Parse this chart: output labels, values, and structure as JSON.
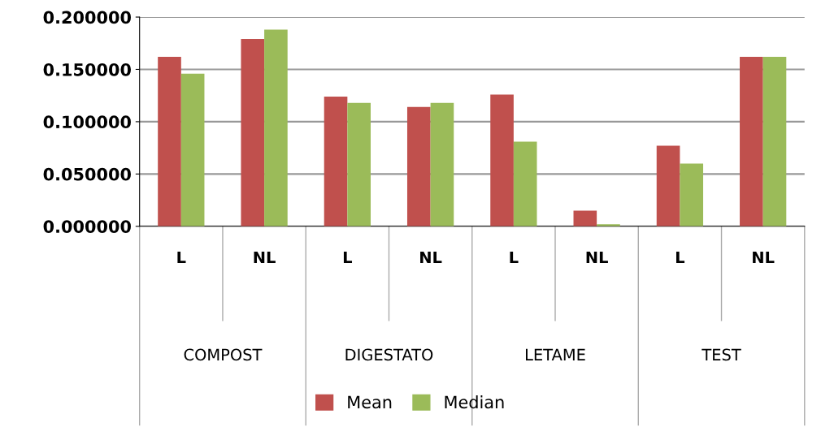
{
  "chart_data": {
    "type": "bar",
    "categories": [
      "L",
      "NL",
      "L",
      "NL",
      "L",
      "NL",
      "L",
      "NL"
    ],
    "annotations": [
      "COMPOST",
      "DIGESTATO",
      "LETAME",
      "TEST"
    ],
    "series": [
      {
        "name": "Mean",
        "color": "#c0504d",
        "values": [
          0.162,
          0.179,
          0.124,
          0.114,
          0.126,
          0.015,
          0.077,
          0.162
        ]
      },
      {
        "name": "Median",
        "color": "#9bbb59",
        "values": [
          0.146,
          0.188,
          0.118,
          0.118,
          0.081,
          0.002,
          0.06,
          0.162
        ]
      }
    ],
    "ylim": [
      0,
      0.2
    ],
    "yticks": [
      {
        "value": 0,
        "label": "0.000000"
      },
      {
        "value": 0.05,
        "label": "0.050000"
      },
      {
        "value": 0.1,
        "label": "0.100000"
      },
      {
        "value": 0.15,
        "label": "0.150000"
      },
      {
        "value": 0.2,
        "label": "0.200000"
      }
    ],
    "grid": "y",
    "legend": "bottom"
  }
}
